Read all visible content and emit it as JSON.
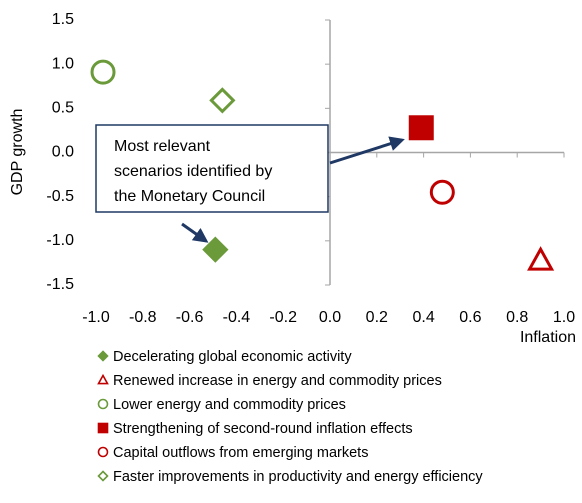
{
  "chart_data": {
    "type": "scatter",
    "xlabel": "Inflation",
    "ylabel": "GDP growth",
    "xlim": [
      -1.0,
      1.0
    ],
    "ylim": [
      -1.5,
      1.5
    ],
    "xticks": [
      {
        "value": -1.0,
        "label": "-1.0"
      },
      -0.8,
      -0.6,
      -0.4,
      -0.2,
      {
        "value": 0,
        "label": "0.0"
      },
      0.2,
      0.4,
      0.6,
      0.8,
      {
        "value": 1.0,
        "label": "1.0"
      }
    ],
    "yticks": [
      1.5,
      {
        "value": 1.0,
        "label": "1.0"
      },
      0.5,
      {
        "value": 0,
        "label": "0.0"
      },
      -0.5,
      {
        "value": -1.0,
        "label": "-1.0"
      },
      -1.5
    ],
    "annotation": [
      "Most relevant",
      "scenarios identified by",
      "the Monetary Council"
    ],
    "series": [
      {
        "name": "Decelerating global economic activity",
        "color": "#6a9a3a",
        "marker": "diamond",
        "filled": true,
        "x": [
          -0.49
        ],
        "values": [
          -1.1
        ]
      },
      {
        "name": "Renewed increase in energy and commodity prices",
        "color": "#c00000",
        "marker": "triangle",
        "filled": false,
        "x": [
          0.9
        ],
        "values": [
          -1.22
        ]
      },
      {
        "name": "Lower energy and commodity prices",
        "color": "#6a9a3a",
        "marker": "circle",
        "filled": false,
        "x": [
          -0.97
        ],
        "values": [
          0.91
        ]
      },
      {
        "name": "Strengthening of second-round inflation effects",
        "color": "#c00000",
        "marker": "square",
        "filled": true,
        "x": [
          0.39
        ],
        "values": [
          0.28
        ]
      },
      {
        "name": "Capital outflows from emerging markets",
        "color": "#c00000",
        "marker": "circle",
        "filled": false,
        "x": [
          0.48
        ],
        "values": [
          -0.45
        ]
      },
      {
        "name": "Faster improvements in productivity and energy efficiency",
        "color": "#6a9a3a",
        "marker": "diamond",
        "filled": false,
        "x": [
          -0.46
        ],
        "values": [
          0.59
        ]
      }
    ]
  }
}
